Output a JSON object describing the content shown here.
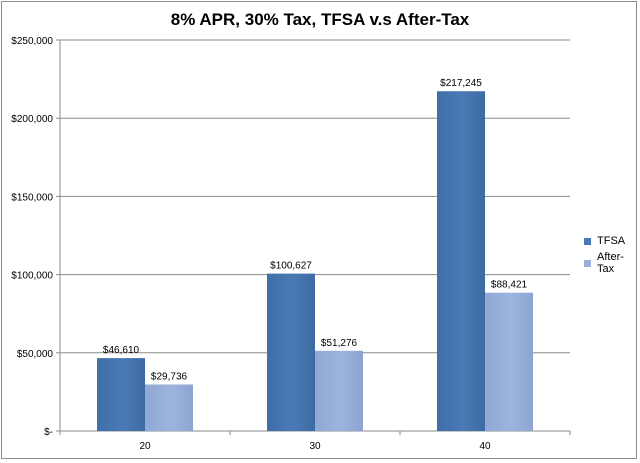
{
  "chart_data": {
    "type": "bar",
    "title": "8% APR, 30% Tax, TFSA v.s After-Tax",
    "categories": [
      "20",
      "30",
      "40"
    ],
    "series": [
      {
        "name": "TFSA",
        "values": [
          46610,
          100627,
          217245
        ],
        "color": "#4a7ab5"
      },
      {
        "name": "After-Tax",
        "values": [
          29736,
          51276,
          88421
        ],
        "color": "#98b0d9"
      }
    ],
    "data_labels": {
      "TFSA": [
        "$46,610",
        "$100,627",
        "$217,245"
      ],
      "After-Tax": [
        "$29,736",
        "$51,276",
        "$88,421"
      ]
    },
    "y_ticks": [
      0,
      50000,
      100000,
      150000,
      200000,
      250000
    ],
    "y_tick_labels": [
      "$-",
      "$50,000",
      "$100,000",
      "$150,000",
      "$200,000",
      "$250,000"
    ],
    "ylim": [
      0,
      250000
    ],
    "grid": true,
    "legend_position": "right"
  }
}
